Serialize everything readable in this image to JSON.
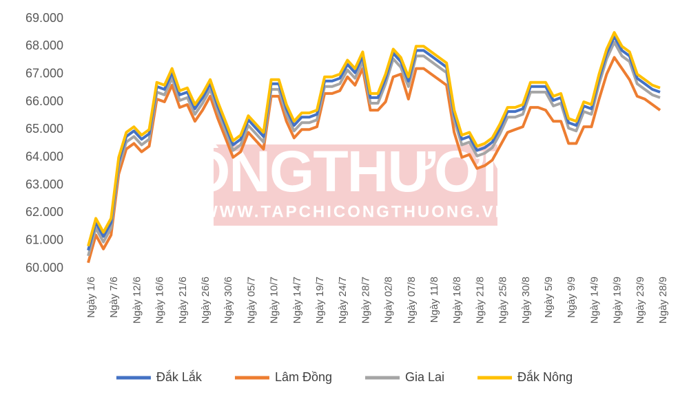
{
  "chart_data": {
    "type": "line",
    "watermark": [
      "CÔNGTHƯƠNG",
      "WWW.TAPCHICONGTHUONG.VN"
    ],
    "categories": [
      "Ngày 1/6",
      null,
      null,
      "Ngày 7/6",
      null,
      null,
      "Ngày 12/6",
      null,
      null,
      "Ngày 16/6",
      null,
      null,
      "Ngày 21/6",
      null,
      null,
      "Ngày 26/6",
      null,
      null,
      "Ngày 30/6",
      null,
      null,
      "Ngày 05/7",
      null,
      null,
      "Ngày 10/7",
      null,
      null,
      "Ngày 14/7",
      null,
      null,
      "Ngày 19/7",
      null,
      null,
      "Ngày 24/7",
      null,
      null,
      "Ngày 28/7",
      null,
      null,
      "Ngày 02/8",
      null,
      null,
      "Ngày 07/8",
      null,
      null,
      "Ngày 11/8",
      null,
      null,
      "Ngày 16/8",
      null,
      null,
      "Ngày 21/8",
      null,
      null,
      "Ngày 25/8",
      null,
      null,
      "Ngày 30/8",
      null,
      null,
      "Ngày 5/9",
      null,
      null,
      "Ngày 9/9",
      null,
      null,
      "Ngày 14/9",
      null,
      null,
      "Ngày 19/9",
      null,
      null,
      "Ngày 23/9",
      null,
      null,
      "Ngày 28/9"
    ],
    "series": [
      {
        "name": "Đắk Lắk",
        "color": "#4472c4",
        "values": [
          60650,
          61650,
          61150,
          61650,
          63850,
          64750,
          64950,
          64650,
          64850,
          66550,
          66450,
          67050,
          66250,
          66350,
          65750,
          66150,
          66650,
          65850,
          65150,
          64450,
          64650,
          65350,
          65050,
          64750,
          66650,
          66650,
          65750,
          65150,
          65450,
          65450,
          65550,
          66750,
          66750,
          66850,
          67350,
          67050,
          67650,
          66150,
          66150,
          66850,
          67750,
          67450,
          66750,
          67850,
          67850,
          67650,
          67450,
          67250,
          65550,
          64650,
          64750,
          64250,
          64350,
          64550,
          65050,
          65650,
          65650,
          65750,
          66550,
          66550,
          66550,
          66050,
          66150,
          65250,
          65150,
          65850,
          65750,
          66850,
          67750,
          68350,
          67850,
          67650,
          66850,
          66650,
          66450,
          66350
        ]
      },
      {
        "name": "Lâm Đồng",
        "color": "#ed7d31",
        "values": [
          60200,
          61200,
          60700,
          61200,
          63400,
          64300,
          64500,
          64200,
          64400,
          66100,
          66000,
          66600,
          65800,
          65900,
          65300,
          65700,
          66200,
          65400,
          64700,
          64000,
          64200,
          64900,
          64600,
          64300,
          66200,
          66200,
          65300,
          64700,
          65000,
          65000,
          65100,
          66300,
          66300,
          66400,
          66900,
          66600,
          67200,
          65700,
          65700,
          66000,
          66900,
          67000,
          66100,
          67200,
          67200,
          67000,
          66800,
          66600,
          64900,
          64000,
          64100,
          63600,
          63700,
          63900,
          64400,
          64900,
          65000,
          65100,
          65800,
          65800,
          65700,
          65300,
          65300,
          64500,
          64500,
          65100,
          65100,
          66100,
          67000,
          67600,
          67200,
          66800,
          66200,
          66100,
          65900,
          65700
        ]
      },
      {
        "name": "Gia Lai",
        "color": "#a5a5a5",
        "values": [
          60450,
          61450,
          60950,
          61450,
          63650,
          64550,
          64750,
          64450,
          64650,
          66350,
          66250,
          66850,
          66050,
          66150,
          65550,
          65950,
          66450,
          65650,
          64950,
          64250,
          64450,
          65150,
          64850,
          64550,
          66450,
          66450,
          65550,
          64950,
          65250,
          65250,
          65350,
          66550,
          66550,
          66650,
          67150,
          66850,
          67450,
          65950,
          65950,
          66650,
          67550,
          67250,
          66550,
          67650,
          67650,
          67450,
          67250,
          67050,
          65350,
          64450,
          64550,
          64050,
          64150,
          64350,
          64850,
          65450,
          65450,
          65550,
          66350,
          66350,
          66350,
          65850,
          65950,
          65050,
          64950,
          65650,
          65550,
          66650,
          67550,
          68150,
          67650,
          67450,
          66650,
          66450,
          66250,
          66150
        ]
      },
      {
        "name": "Đắk Nông",
        "color": "#ffc000",
        "values": [
          60800,
          61800,
          61300,
          61800,
          64000,
          64900,
          65100,
          64800,
          65000,
          66700,
          66600,
          67200,
          66400,
          66500,
          65900,
          66300,
          66800,
          66000,
          65300,
          64600,
          64800,
          65500,
          65200,
          64900,
          66800,
          66800,
          65900,
          65300,
          65600,
          65600,
          65700,
          66900,
          66900,
          67000,
          67500,
          67200,
          67800,
          66300,
          66300,
          67000,
          67900,
          67600,
          66900,
          68000,
          68000,
          67800,
          67600,
          67400,
          65700,
          64800,
          64900,
          64400,
          64500,
          64700,
          65200,
          65800,
          65800,
          65900,
          66700,
          66700,
          66700,
          66200,
          66300,
          65400,
          65300,
          66000,
          65900,
          67000,
          67900,
          68500,
          68000,
          67800,
          67000,
          66800,
          66600,
          66500
        ]
      }
    ],
    "ylim": [
      60000,
      69000
    ],
    "yticks": [
      {
        "value": 60000,
        "label": "60.000"
      },
      {
        "value": 61000,
        "label": "61.000"
      },
      {
        "value": 62000,
        "label": "62.000"
      },
      {
        "value": 63000,
        "label": "63.000"
      },
      {
        "value": 64000,
        "label": "64.000"
      },
      {
        "value": 65000,
        "label": "65.000"
      },
      {
        "value": 66000,
        "label": "66.000"
      },
      {
        "value": 67000,
        "label": "67.000"
      },
      {
        "value": 68000,
        "label": "68.000"
      },
      {
        "value": 69000,
        "label": "69.000"
      }
    ],
    "grid": false,
    "legend": "bottom"
  }
}
